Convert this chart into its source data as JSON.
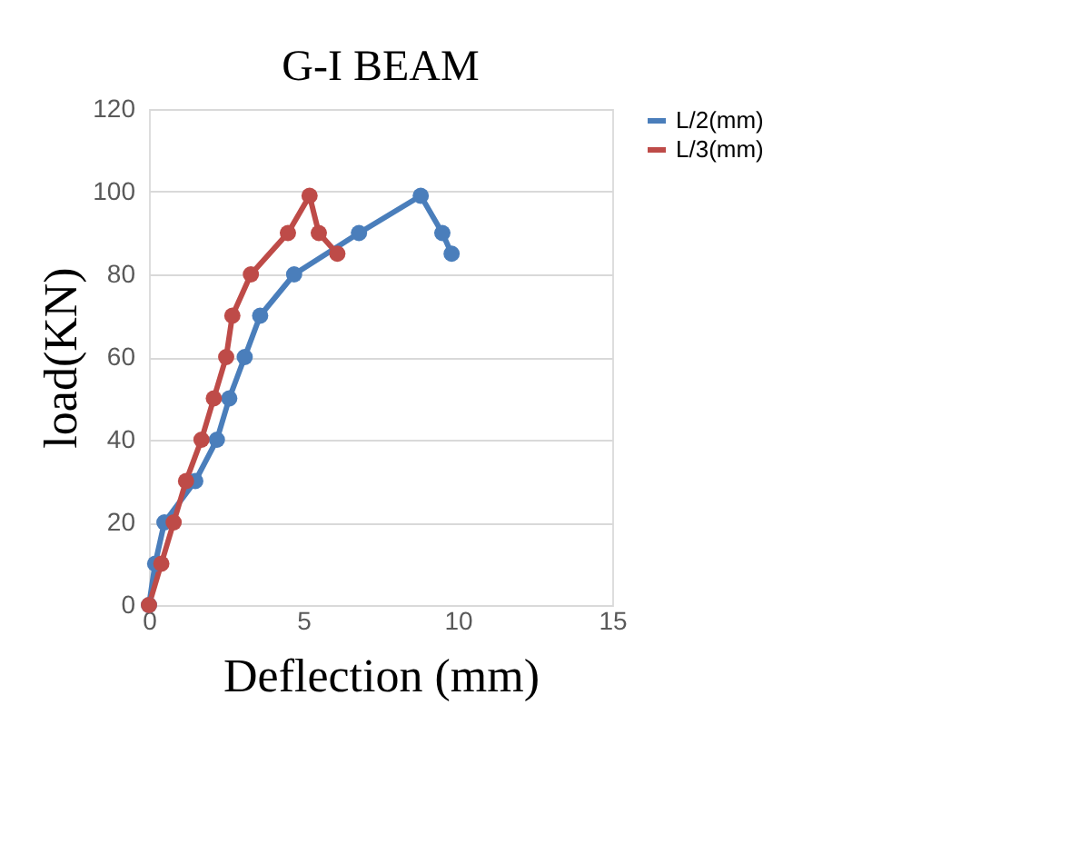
{
  "chart_data": {
    "type": "line",
    "title": "G-I BEAM",
    "xlabel": "Deflection (mm)",
    "ylabel": "load(KN)",
    "xlim": [
      0,
      15
    ],
    "xticks": [
      0,
      5,
      10,
      15
    ],
    "ylim": [
      0,
      120
    ],
    "yticks": [
      0,
      20,
      40,
      60,
      80,
      100,
      120
    ],
    "grid": "y",
    "legend": "right",
    "marker": "circle",
    "line_style": "solid",
    "series": [
      {
        "name": "L/2(mm)",
        "color": "#4a7ebb",
        "x": [
          0,
          0.2,
          0.5,
          1.5,
          2.2,
          2.6,
          3.1,
          3.6,
          4.7,
          6.8,
          8.8,
          9.5,
          9.8
        ],
        "values": [
          0,
          10,
          20,
          30,
          40,
          50,
          60,
          70,
          80,
          90,
          99,
          90,
          85
        ]
      },
      {
        "name": "L/3(mm)",
        "color": "#be4b48",
        "x": [
          0,
          0.4,
          0.8,
          1.2,
          1.7,
          2.1,
          2.5,
          2.7,
          3.3,
          4.5,
          5.2,
          5.5,
          6.1
        ],
        "values": [
          0,
          10,
          20,
          30,
          40,
          50,
          60,
          70,
          80,
          90,
          99,
          90,
          85
        ]
      }
    ]
  }
}
